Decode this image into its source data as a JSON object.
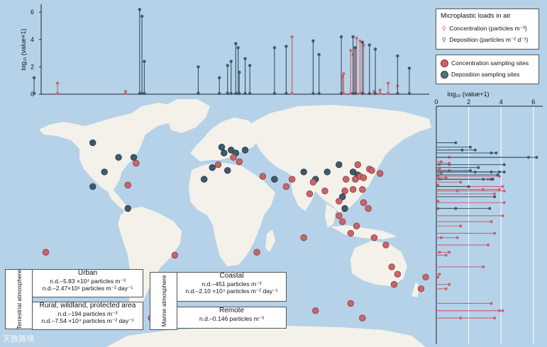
{
  "colors": {
    "ocean": "#b5d2e9",
    "land": "#f4f1ea",
    "concentration": "#c8656b",
    "deposition": "#3f5a6a"
  },
  "top_chart": {
    "y_label": "log₁₀ (value+1)",
    "y_ticks": [
      "0",
      "2",
      "4",
      "6"
    ]
  },
  "right_chart": {
    "x_label": "log₁₀ (value+1)",
    "x_ticks": [
      "0",
      "2",
      "4",
      "6"
    ]
  },
  "legend": {
    "title": "Microplastic loads in air",
    "concentration": "Concentration (particles m⁻³)",
    "deposition": "Deposition (particles m⁻² d⁻¹)",
    "concentration_sites": "Concentration sampling sites",
    "deposition_sites": "Deposition sampling sites"
  },
  "info": {
    "terrestrial": "Terrestrial atmosphere",
    "marine": "Marine atmosphere",
    "urban": {
      "title": "Urban",
      "line1": "n.d.–5.83 ×10⁴ particles m⁻³",
      "line2": "n.d.–2.47×10⁶ particles m⁻² day⁻¹"
    },
    "rural": {
      "title": "Rural, wildland, protected area",
      "line1": "n.d.–194 particles m⁻³",
      "line2": "n.d.–7.54 ×10⁴ particles m⁻² day⁻¹"
    },
    "coastal": {
      "title": "Coastal",
      "line1": "n.d.–451 particles m⁻³",
      "line2": "n.d.–2.10 ×10⁴ particles m⁻² day⁻¹"
    },
    "remote": {
      "title": "Remote",
      "line1": "n.d.–0.146 particles m⁻³"
    }
  },
  "watermark": "天数路境",
  "chart_data": {
    "type": "scatter",
    "title": "Microplastic loads in air",
    "ylabel": "log₁₀ (value+1)",
    "ylim": [
      0,
      6.5
    ],
    "series": [
      {
        "name": "Concentration (particles m⁻³)",
        "lon": [
          -140,
          -20,
          150,
          130,
          142,
          135,
          118,
          115,
          113,
          121,
          104,
          60,
          5,
          103,
          110,
          112,
          -82
        ],
        "value": [
          0.8,
          0.1,
          0.6,
          0.2,
          0.8,
          0.3,
          3.9,
          4.1,
          3.4,
          3.6,
          1.5,
          4.2,
          0.1,
          1.3,
          3.2,
          2.9,
          0.2
        ]
      },
      {
        "name": "Deposition (particles m⁻² d⁻¹)",
        "lon": [
          -160,
          -70,
          -68,
          -66,
          -20,
          -2,
          5,
          8,
          12,
          14,
          15,
          20,
          24,
          45,
          55,
          78,
          83,
          102,
          112,
          114,
          120,
          126,
          131,
          150,
          160
        ],
        "value": [
          1.2,
          6.2,
          5.7,
          2.4,
          2.0,
          1.2,
          2.1,
          2.4,
          3.7,
          3.4,
          1.6,
          2.6,
          2.1,
          3.4,
          3.5,
          3.9,
          2.9,
          4.2,
          4.2,
          3.4,
          3.8,
          3.6,
          3.3,
          2.8,
          1.9
        ]
      }
    ],
    "map_sites": {
      "concentration": [
        [
          -73,
          41
        ],
        [
          -80,
          26
        ],
        [
          -40,
          -22
        ],
        [
          -3,
          40
        ],
        [
          10,
          45
        ],
        [
          15,
          42
        ],
        [
          35,
          32
        ],
        [
          55,
          25
        ],
        [
          60,
          30
        ],
        [
          75,
          20
        ],
        [
          78,
          28
        ],
        [
          88,
          22
        ],
        [
          100,
          15
        ],
        [
          105,
          22
        ],
        [
          106,
          30
        ],
        [
          112,
          23
        ],
        [
          114,
          30
        ],
        [
          116,
          40
        ],
        [
          118,
          32
        ],
        [
          121,
          31
        ],
        [
          126,
          37
        ],
        [
          128,
          36
        ],
        [
          135,
          34
        ],
        [
          120,
          23
        ],
        [
          100,
          5
        ],
        [
          103,
          1
        ],
        [
          110,
          -7
        ],
        [
          115,
          -2
        ],
        [
          121,
          14
        ],
        [
          125,
          10
        ],
        [
          130,
          -10
        ],
        [
          140,
          -15
        ],
        [
          145,
          -30
        ],
        [
          150,
          -35
        ],
        [
          147,
          -42
        ],
        [
          174,
          -37
        ],
        [
          170,
          -45
        ],
        [
          -150,
          -20
        ],
        [
          30,
          -20
        ],
        [
          70,
          -10
        ],
        [
          80,
          -60
        ],
        [
          40,
          -60
        ],
        [
          110,
          -55
        ],
        [
          120,
          -65
        ],
        [
          -60,
          -65
        ]
      ],
      "deposition": [
        [
          -110,
          55
        ],
        [
          -88,
          45
        ],
        [
          -75,
          45
        ],
        [
          -100,
          35
        ],
        [
          -110,
          25
        ],
        [
          -80,
          10
        ],
        [
          0,
          52
        ],
        [
          8,
          50
        ],
        [
          2,
          48
        ],
        [
          12,
          48
        ],
        [
          20,
          50
        ],
        [
          -8,
          38
        ],
        [
          5,
          36
        ],
        [
          -15,
          30
        ],
        [
          45,
          30
        ],
        [
          70,
          35
        ],
        [
          80,
          30
        ],
        [
          90,
          35
        ],
        [
          100,
          40
        ],
        [
          112,
          35
        ],
        [
          116,
          33
        ],
        [
          103,
          18
        ],
        [
          105,
          10
        ]
      ]
    }
  }
}
